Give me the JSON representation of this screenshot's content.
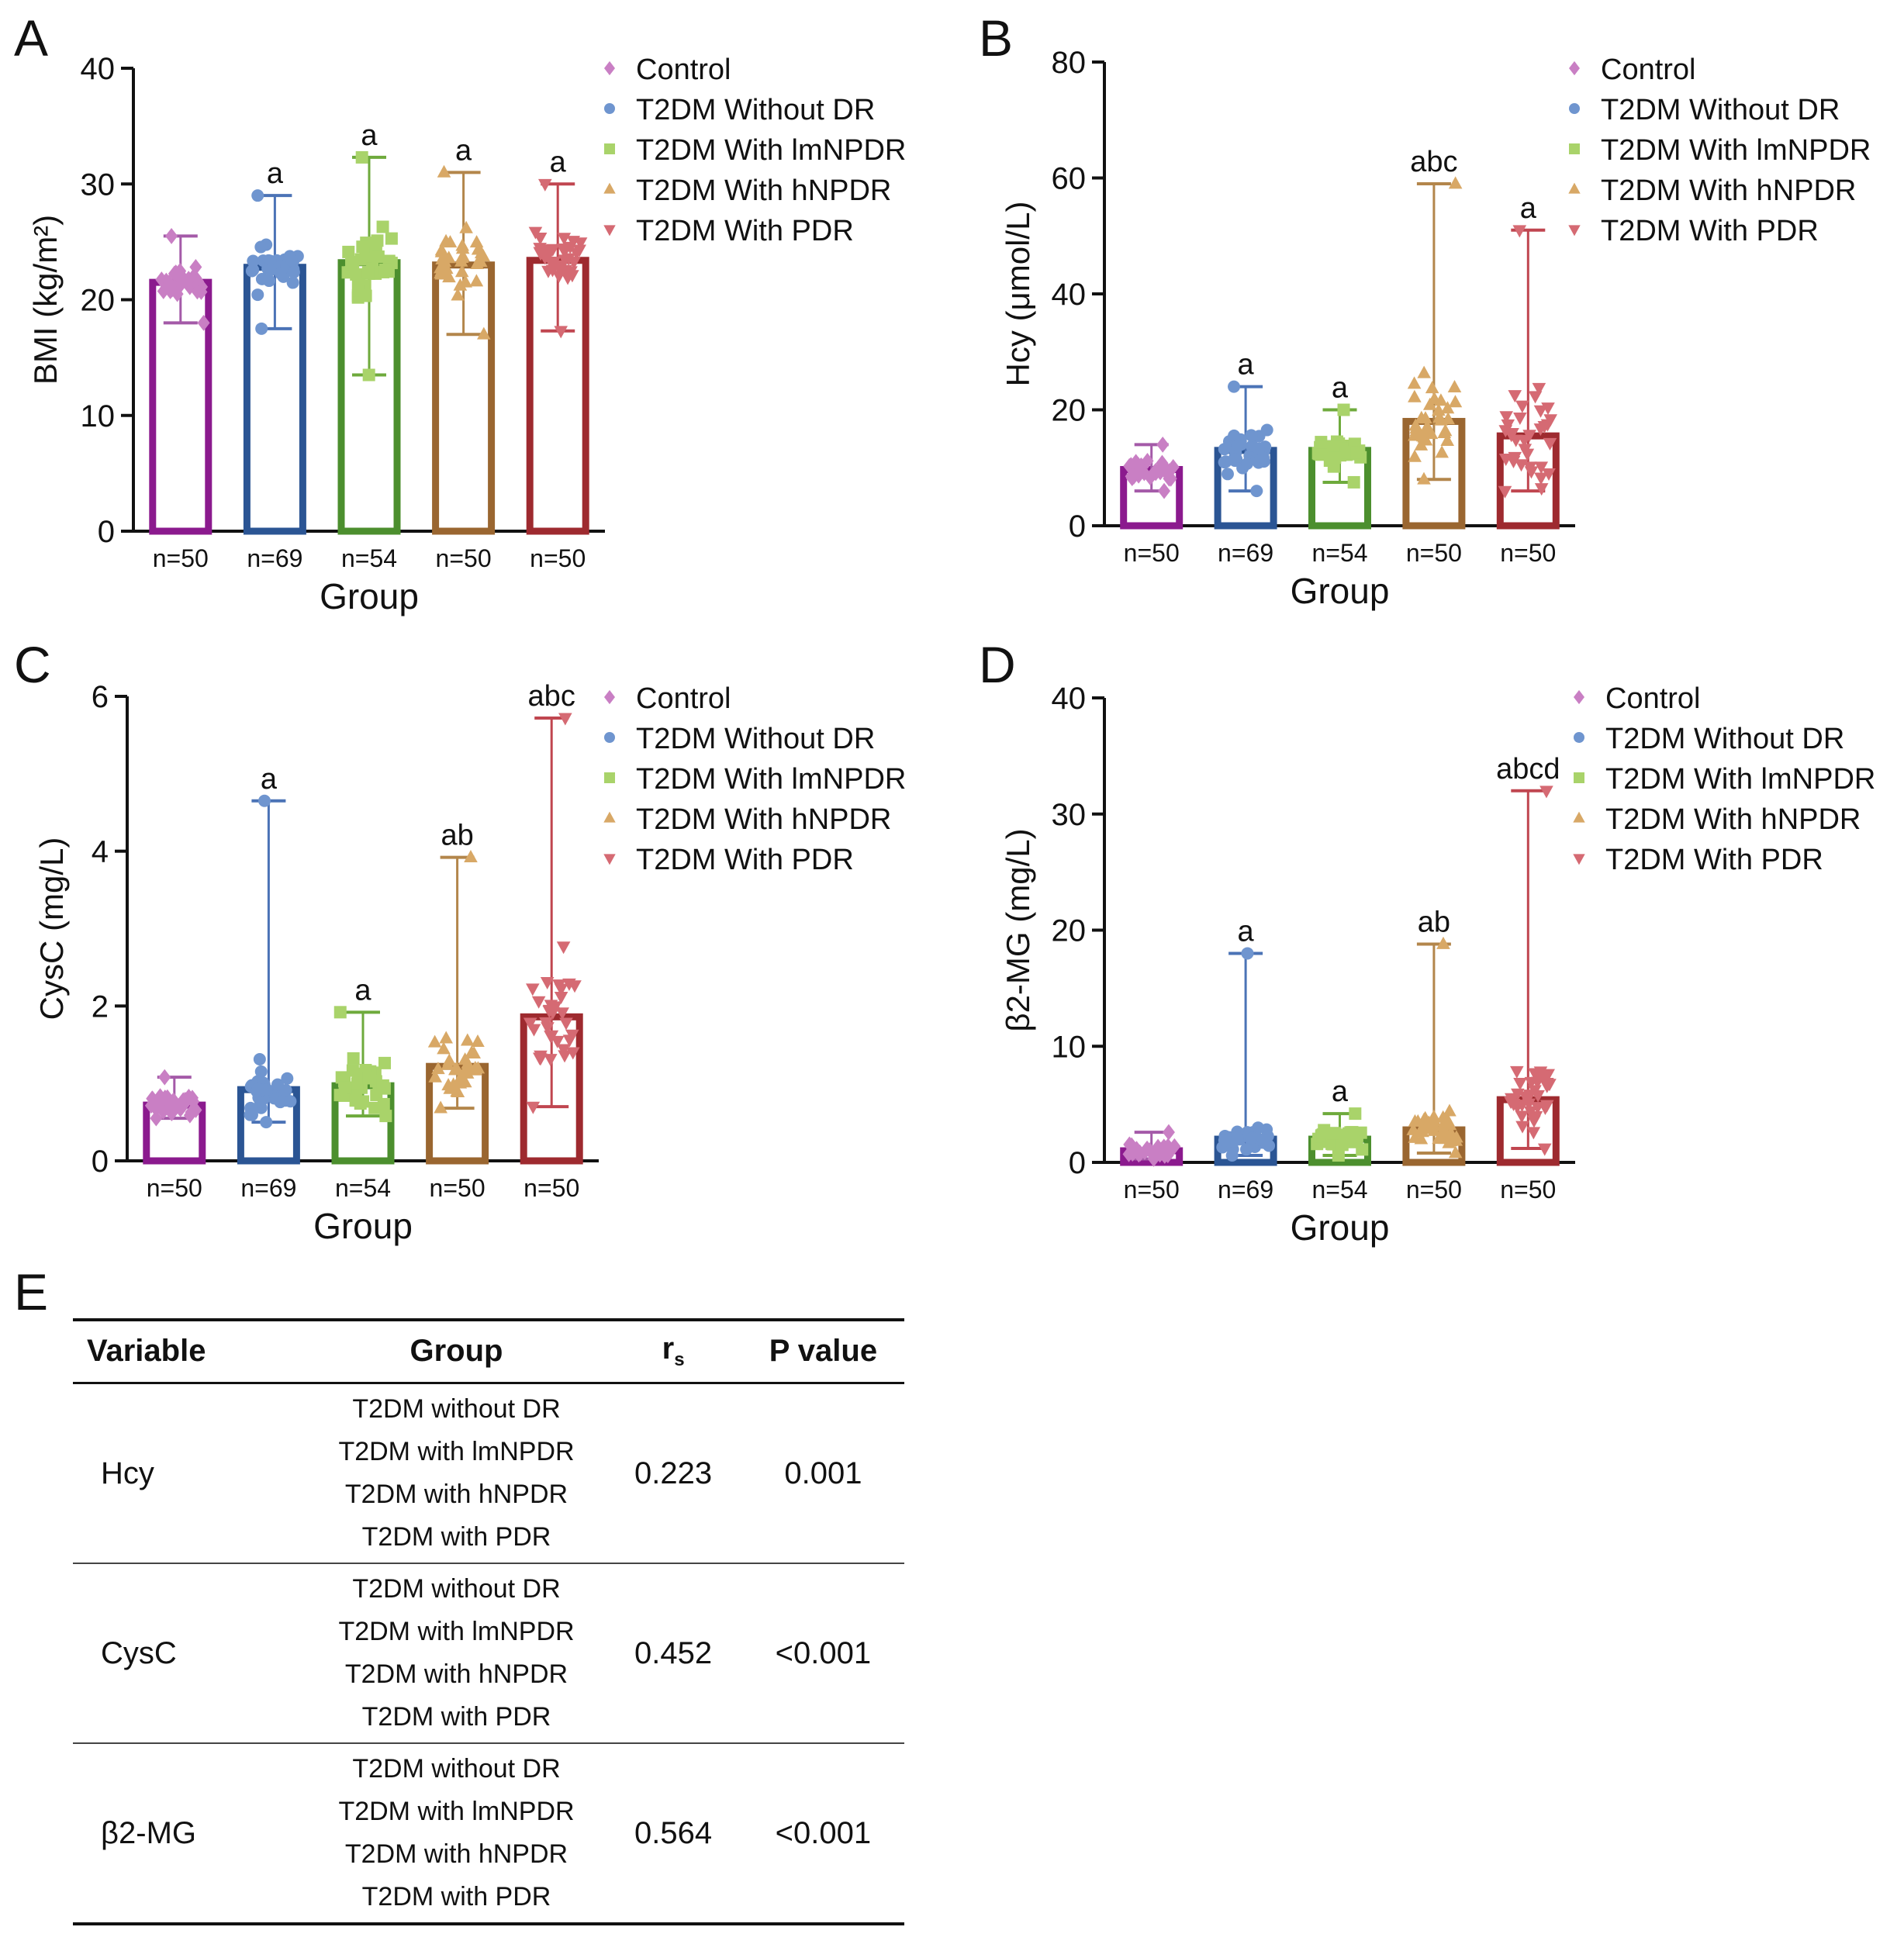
{
  "panel_letter_e": "E",
  "legend_labels": [
    "Control",
    "T2DM Without DR",
    "T2DM With lmNPDR",
    "T2DM With hNPDR",
    "T2DM With PDR"
  ],
  "colors": {
    "bar_edge": [
      "#8b1a8e",
      "#2b5594",
      "#4c8f2e",
      "#9a6630",
      "#9e2a2f"
    ],
    "point": [
      "#c97fc4",
      "#6f95cf",
      "#a9d36a",
      "#d8a866",
      "#d56a73"
    ],
    "whisker": [
      "#a45aa8",
      "#4b73b6",
      "#6eaa3c",
      "#b3864b",
      "#c04650"
    ]
  },
  "chart_data": [
    {
      "type": "bar",
      "panel": "A",
      "title": "",
      "xlabel": "Group",
      "ylabel": "BMI (kg/m²)",
      "ylim": [
        0,
        40
      ],
      "yticks": [
        0,
        10,
        20,
        30,
        40
      ],
      "categories": [
        "n=50",
        "n=69",
        "n=54",
        "n=50",
        "n=50"
      ],
      "series": [
        {
          "name": "Mean",
          "values": [
            21.5,
            22.8,
            23.2,
            23.0,
            23.4
          ]
        }
      ],
      "min": [
        18.0,
        17.5,
        13.5,
        17.0,
        17.3
      ],
      "max": [
        25.5,
        29.0,
        32.3,
        31.0,
        30.0
      ],
      "annotations": [
        "",
        "a",
        "a",
        "a",
        "a"
      ],
      "legend": [
        "Control",
        "T2DM Without DR",
        "T2DM With lmNPDR",
        "T2DM With hNPDR",
        "T2DM With PDR"
      ]
    },
    {
      "type": "bar",
      "panel": "B",
      "title": "",
      "xlabel": "Group",
      "ylabel": "Hcy (μmol/L)",
      "ylim": [
        0,
        80
      ],
      "yticks": [
        0,
        20,
        40,
        60,
        80
      ],
      "categories": [
        "n=50",
        "n=69",
        "n=54",
        "n=50",
        "n=50"
      ],
      "series": [
        {
          "name": "Mean",
          "values": [
            9.7,
            13.0,
            13.0,
            18.0,
            15.5
          ]
        }
      ],
      "min": [
        6.0,
        6.0,
        7.5,
        8.0,
        6.0
      ],
      "max": [
        14.0,
        24.0,
        20.0,
        59.0,
        51.0
      ],
      "annotations": [
        "",
        "a",
        "a",
        "abc",
        "a"
      ],
      "legend": [
        "Control",
        "T2DM Without DR",
        "T2DM With lmNPDR",
        "T2DM With hNPDR",
        "T2DM With PDR"
      ]
    },
    {
      "type": "bar",
      "panel": "C",
      "title": "",
      "xlabel": "Group",
      "ylabel": "CysC (mg/L)",
      "ylim": [
        0,
        6
      ],
      "yticks": [
        0,
        2,
        4,
        6
      ],
      "categories": [
        "n=50",
        "n=69",
        "n=54",
        "n=50",
        "n=50"
      ],
      "series": [
        {
          "name": "Mean",
          "values": [
            0.72,
            0.92,
            0.97,
            1.22,
            1.86
          ]
        }
      ],
      "min": [
        0.55,
        0.5,
        0.58,
        0.68,
        0.7
      ],
      "max": [
        1.08,
        4.65,
        1.92,
        3.92,
        5.72
      ],
      "annotations": [
        "",
        "a",
        "a",
        "ab",
        "abc"
      ],
      "legend": [
        "Control",
        "T2DM Without DR",
        "T2DM With lmNPDR",
        "T2DM With hNPDR",
        "T2DM With PDR"
      ]
    },
    {
      "type": "bar",
      "panel": "D",
      "title": "",
      "xlabel": "Group",
      "ylabel": "β2-MG (mg/L)",
      "ylim": [
        0,
        40
      ],
      "yticks": [
        0,
        10,
        20,
        30,
        40
      ],
      "categories": [
        "n=50",
        "n=69",
        "n=54",
        "n=50",
        "n=50"
      ],
      "series": [
        {
          "name": "Mean",
          "values": [
            1.0,
            2.0,
            2.0,
            2.8,
            5.4
          ]
        }
      ],
      "min": [
        0.3,
        0.6,
        0.6,
        0.8,
        1.2
      ],
      "max": [
        2.6,
        18.0,
        4.2,
        18.8,
        32.0
      ],
      "annotations": [
        "",
        "a",
        "a",
        "ab",
        "abcd"
      ],
      "legend": [
        "Control",
        "T2DM Without DR",
        "T2DM With lmNPDR",
        "T2DM With hNPDR",
        "T2DM With PDR"
      ]
    },
    {
      "type": "table",
      "panel": "E",
      "headers": {
        "variable": "Variable",
        "group": "Group",
        "rs": "r",
        "rs_sub": "s",
        "p": "P value"
      },
      "rows": [
        {
          "variable": "Hcy",
          "groups": [
            "T2DM without DR",
            "T2DM with lmNPDR",
            "T2DM with hNPDR",
            "T2DM with PDR"
          ],
          "rs": "0.223",
          "p": "0.001"
        },
        {
          "variable": "CysC",
          "groups": [
            "T2DM without DR",
            "T2DM with lmNPDR",
            "T2DM with hNPDR",
            "T2DM with PDR"
          ],
          "rs": "0.452",
          "p": "<0.001"
        },
        {
          "variable": "β2-MG",
          "groups": [
            "T2DM without DR",
            "T2DM with lmNPDR",
            "T2DM with hNPDR",
            "T2DM with PDR"
          ],
          "rs": "0.564",
          "p": "<0.001"
        }
      ]
    }
  ]
}
